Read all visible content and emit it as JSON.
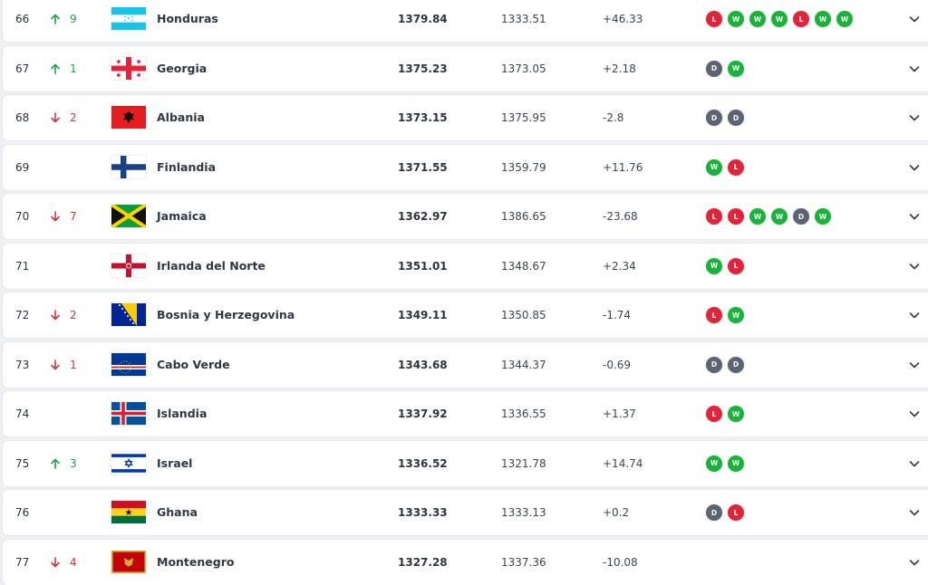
{
  "colors": {
    "up": "#18a34a",
    "down": "#d6313f",
    "win": "#19b33a",
    "loss": "#e0243a",
    "draw": "#5a6473"
  },
  "icons": {
    "up": "arrow-up-icon",
    "down": "arrow-down-icon",
    "same": "dot-icon",
    "expand": "chevron-down-icon"
  },
  "rows": [
    {
      "rank": "66",
      "move": "up",
      "change": "9",
      "flag": "hn",
      "country": "Honduras",
      "total": "1379.84",
      "previous": "1333.51",
      "diff": "+46.33",
      "form": [
        "L",
        "W",
        "W",
        "W",
        "L",
        "W",
        "W"
      ]
    },
    {
      "rank": "67",
      "move": "up",
      "change": "1",
      "flag": "ge",
      "country": "Georgia",
      "total": "1375.23",
      "previous": "1373.05",
      "diff": "+2.18",
      "form": [
        "D",
        "W"
      ]
    },
    {
      "rank": "68",
      "move": "down",
      "change": "2",
      "flag": "al",
      "country": "Albania",
      "total": "1373.15",
      "previous": "1375.95",
      "diff": "-2.8",
      "form": [
        "D",
        "D"
      ]
    },
    {
      "rank": "69",
      "move": "same",
      "change": "",
      "flag": "fi",
      "country": "Finlandia",
      "total": "1371.55",
      "previous": "1359.79",
      "diff": "+11.76",
      "form": [
        "W",
        "L"
      ]
    },
    {
      "rank": "70",
      "move": "down",
      "change": "7",
      "flag": "jm",
      "country": "Jamaica",
      "total": "1362.97",
      "previous": "1386.65",
      "diff": "-23.68",
      "form": [
        "L",
        "L",
        "W",
        "W",
        "D",
        "W"
      ]
    },
    {
      "rank": "71",
      "move": "same",
      "change": "",
      "flag": "nir",
      "country": "Irlanda del Norte",
      "total": "1351.01",
      "previous": "1348.67",
      "diff": "+2.34",
      "form": [
        "W",
        "L"
      ]
    },
    {
      "rank": "72",
      "move": "down",
      "change": "2",
      "flag": "ba",
      "country": "Bosnia y Herzegovina",
      "total": "1349.11",
      "previous": "1350.85",
      "diff": "-1.74",
      "form": [
        "L",
        "W"
      ]
    },
    {
      "rank": "73",
      "move": "down",
      "change": "1",
      "flag": "cv",
      "country": "Cabo Verde",
      "total": "1343.68",
      "previous": "1344.37",
      "diff": "-0.69",
      "form": [
        "D",
        "D"
      ]
    },
    {
      "rank": "74",
      "move": "same",
      "change": "",
      "flag": "is",
      "country": "Islandia",
      "total": "1337.92",
      "previous": "1336.55",
      "diff": "+1.37",
      "form": [
        "L",
        "W"
      ]
    },
    {
      "rank": "75",
      "move": "up",
      "change": "3",
      "flag": "il",
      "country": "Israel",
      "total": "1336.52",
      "previous": "1321.78",
      "diff": "+14.74",
      "form": [
        "W",
        "W"
      ]
    },
    {
      "rank": "76",
      "move": "same",
      "change": "",
      "flag": "gh",
      "country": "Ghana",
      "total": "1333.33",
      "previous": "1333.13",
      "diff": "+0.2",
      "form": [
        "D",
        "L"
      ]
    },
    {
      "rank": "77",
      "move": "down",
      "change": "4",
      "flag": "me",
      "country": "Montenegro",
      "total": "1327.28",
      "previous": "1337.36",
      "diff": "-10.08",
      "form": []
    }
  ]
}
